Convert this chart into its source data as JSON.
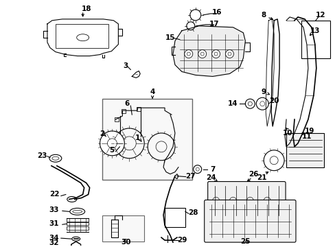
{
  "background_color": "#ffffff",
  "line_color": "#000000",
  "text_color": "#000000",
  "font_size": 7.5,
  "line_width": 0.8,
  "fig_w": 4.89,
  "fig_h": 3.6,
  "dpi": 100
}
